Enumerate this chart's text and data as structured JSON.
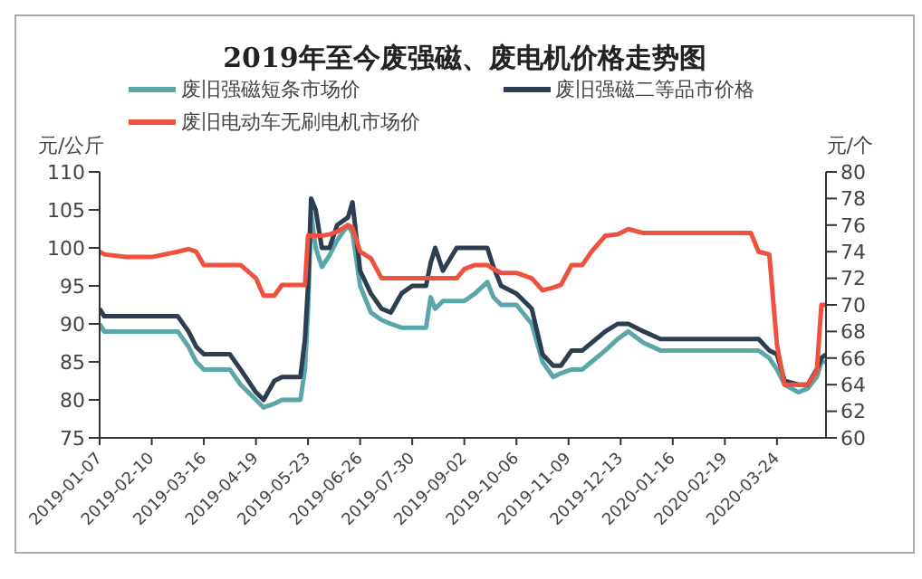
{
  "chart_data": {
    "type": "line",
    "title": "2019年至今废强磁、废电机价格走势图",
    "ylabel": "元/公斤",
    "y2label": "元/个",
    "x": [
      "2019-01-07",
      "2019-01-10",
      "2019-01-24",
      "2019-02-10",
      "2019-02-27",
      "2019-03-06",
      "2019-03-11",
      "2019-03-16",
      "2019-04-02",
      "2019-04-09",
      "2019-04-19",
      "2019-04-24",
      "2019-05-01",
      "2019-05-06",
      "2019-05-18",
      "2019-05-21",
      "2019-05-23",
      "2019-05-25",
      "2019-05-28",
      "2019-06-01",
      "2019-06-06",
      "2019-06-11",
      "2019-06-18",
      "2019-06-21",
      "2019-06-26",
      "2019-07-03",
      "2019-07-10",
      "2019-07-16",
      "2019-07-23",
      "2019-07-30",
      "2019-08-08",
      "2019-08-11",
      "2019-08-14",
      "2019-08-19",
      "2019-08-28",
      "2019-09-02",
      "2019-09-09",
      "2019-09-17",
      "2019-09-21",
      "2019-09-26",
      "2019-10-06",
      "2019-10-16",
      "2019-10-23",
      "2019-10-30",
      "2019-11-04",
      "2019-11-11",
      "2019-11-18",
      "2019-11-24",
      "2019-12-03",
      "2019-12-11",
      "2019-12-18",
      "2019-12-28",
      "2020-01-08",
      "2020-02-02",
      "2020-02-19",
      "2020-03-07",
      "2020-03-12",
      "2020-03-19",
      "2020-03-24",
      "2020-03-29",
      "2020-04-07",
      "2020-04-13",
      "2020-04-19",
      "2020-04-22",
      "2020-04-25"
    ],
    "series": [
      {
        "name": "废旧强磁短条市场价",
        "color": "#5aa6a8",
        "values": [
          90,
          89,
          89,
          89,
          89,
          87,
          85,
          84,
          84,
          82,
          80,
          79,
          79.5,
          80,
          80,
          84,
          92,
          104.5,
          100,
          97.5,
          99,
          101,
          103,
          102,
          95,
          91.5,
          90.5,
          90,
          89.5,
          89.5,
          89.5,
          93.5,
          92,
          93,
          93,
          93,
          94,
          95.5,
          93.5,
          92.5,
          92.5,
          90,
          85,
          83,
          83.5,
          84,
          84,
          85,
          86.5,
          88,
          89,
          87.5,
          86.5,
          86.5,
          86.5,
          86.5,
          86.5,
          85.5,
          84,
          82,
          81,
          81.5,
          83,
          85,
          85
        ]
      },
      {
        "name": "废旧强磁二等品市价格",
        "color": "#2c3e50",
        "values": [
          92,
          91,
          91,
          91,
          91,
          89,
          87,
          86,
          86,
          84,
          81,
          80,
          82.5,
          83,
          83,
          88,
          95,
          106.5,
          105,
          100,
          100,
          103,
          104,
          106,
          97,
          94,
          92,
          91.5,
          94,
          95,
          95,
          98,
          100,
          97,
          100,
          100,
          100,
          100,
          97.5,
          95,
          94,
          92,
          86,
          84.5,
          84.5,
          86.5,
          86.5,
          87.5,
          89,
          90,
          90,
          89,
          88,
          88,
          88,
          88,
          88,
          86.5,
          86,
          82.5,
          82,
          82,
          84,
          85.5,
          86
        ]
      },
      {
        "name": "废旧电动车无刷电机市场价",
        "color": "#f0513f",
        "axis": "y2",
        "values": [
          74,
          73.8,
          73.6,
          73.6,
          74,
          74.2,
          74,
          73,
          73,
          73,
          72,
          70.7,
          70.7,
          71.5,
          71.5,
          71.5,
          75.2,
          75.2,
          75.2,
          75.2,
          75.3,
          75.5,
          76,
          75.8,
          74,
          73.5,
          72,
          72,
          72,
          72,
          72,
          72,
          72,
          72,
          72,
          72.7,
          73,
          73,
          72.7,
          72.4,
          72.4,
          72,
          71.1,
          71.3,
          71.5,
          73,
          73,
          74,
          75.2,
          75.3,
          75.7,
          75.4,
          75.4,
          75.4,
          75.4,
          75.4,
          74,
          73.8,
          67,
          64,
          64,
          64,
          65,
          70,
          70
        ]
      }
    ],
    "xlim": [
      "2019-01-07",
      "2020-04-25"
    ],
    "xticks": [
      "2019-01-07",
      "2019-02-10",
      "2019-03-16",
      "2019-04-19",
      "2019-05-23",
      "2019-06-26",
      "2019-07-30",
      "2019-09-02",
      "2019-10-06",
      "2019-11-09",
      "2019-12-13",
      "2020-01-16",
      "2020-02-19",
      "2020-03-24"
    ],
    "ylim": [
      75,
      110
    ],
    "yticks": [
      75,
      80,
      85,
      90,
      95,
      100,
      105,
      110
    ],
    "y2lim": [
      60,
      80
    ],
    "y2ticks": [
      60,
      62,
      64,
      66,
      68,
      70,
      72,
      74,
      76,
      78,
      80
    ],
    "legend": "top",
    "grid": false,
    "marker": "none",
    "line_style": "solid"
  }
}
